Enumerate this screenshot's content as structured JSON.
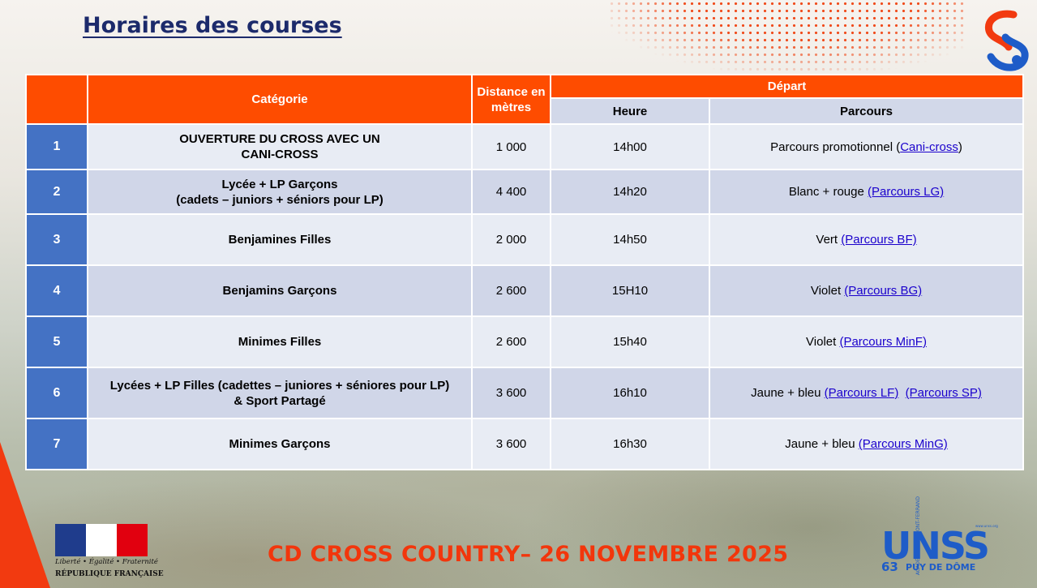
{
  "slide": {
    "title": "Horaires des courses",
    "footer": "CD CROSS COUNTRY– 26 NOVEMBRE 2025"
  },
  "table": {
    "headers": {
      "number": "",
      "category": "Catégorie",
      "distance": "Distance en mètres",
      "depart": "Départ",
      "heure": "Heure",
      "parcours": "Parcours"
    },
    "rows": [
      {
        "num": "1",
        "category": [
          "OUVERTURE DU CROSS AVEC UN",
          "CANI-CROSS"
        ],
        "distance": "1 000",
        "heure": "14h00",
        "parcours_text": "Parcours promotionnel (",
        "links": [
          "Cani-cross"
        ],
        "parcours_suffix": ")"
      },
      {
        "num": "2",
        "category": [
          "Lycée + LP Garçons",
          "(cadets – juniors + séniors pour LP)"
        ],
        "distance": "4 400",
        "heure": "14h20",
        "parcours_text": "Blanc + rouge ",
        "links": [
          "(Parcours LG)"
        ],
        "parcours_suffix": ""
      },
      {
        "num": "3",
        "category": [
          "Benjamines Filles"
        ],
        "distance": "2 000",
        "heure": "14h50",
        "parcours_text": "Vert ",
        "links": [
          "(Parcours BF)"
        ],
        "parcours_suffix": ""
      },
      {
        "num": "4",
        "category": [
          "Benjamins Garçons"
        ],
        "distance": "2 600",
        "heure": "15H10",
        "parcours_text": "Violet ",
        "links": [
          "(Parcours BG)"
        ],
        "parcours_suffix": ""
      },
      {
        "num": "5",
        "category": [
          "Minimes Filles"
        ],
        "distance": "2 600",
        "heure": "15h40",
        "parcours_text": "Violet ",
        "links": [
          "(Parcours MinF)"
        ],
        "parcours_suffix": ""
      },
      {
        "num": "6",
        "category": [
          "Lycées + LP Filles (cadettes – juniores + séniores pour LP)",
          "& Sport Partagé"
        ],
        "distance": "3 600",
        "heure": "16h10",
        "parcours_text": "Jaune + bleu ",
        "links": [
          "(Parcours LF)",
          "(Parcours SP)"
        ],
        "parcours_suffix": ""
      },
      {
        "num": "7",
        "category": [
          "Minimes Garçons"
        ],
        "distance": "3 600",
        "heure": "16h30",
        "parcours_text": "Jaune + bleu ",
        "links": [
          "(Parcours MinG)"
        ],
        "parcours_suffix": ""
      }
    ]
  },
  "logos": {
    "republique_motto": "Liberté • Égalité • Fraternité",
    "republique_name": "RÉPUBLIQUE FRANÇAISE",
    "unss_name": "UNSS",
    "unss_number": "63",
    "unss_department": "PUY DE DÔME",
    "unss_academie": "ACADÉMIE CLERMONT-FERRAND",
    "unss_url": "www.unss.org"
  },
  "colors": {
    "header_orange": "#fe4c00",
    "number_blue": "#4472c4",
    "title_navy": "#1c2a6b",
    "footer_red": "#f2360c",
    "link": "#1a00cc"
  }
}
